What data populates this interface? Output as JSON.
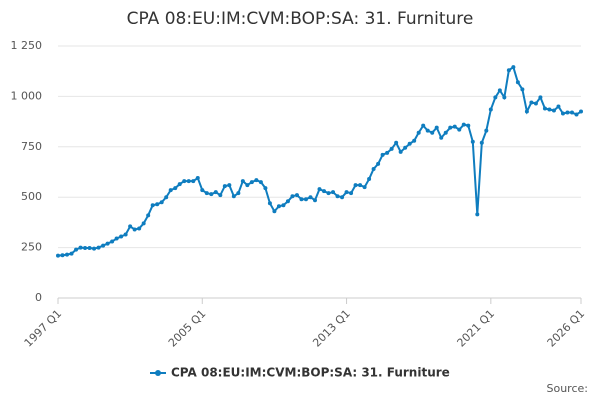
{
  "chart_data": {
    "type": "line",
    "title": "CPA 08:EU:IM:CVM:BOP:SA: 31. Furniture",
    "source": "Source:",
    "categories": [
      "1997 Q1",
      null,
      null,
      null,
      null,
      null,
      null,
      null,
      null,
      null,
      null,
      null,
      null,
      null,
      null,
      null,
      null,
      null,
      null,
      null,
      null,
      null,
      null,
      null,
      null,
      null,
      null,
      null,
      null,
      null,
      null,
      null,
      "2005 Q1",
      null,
      null,
      null,
      null,
      null,
      null,
      null,
      null,
      null,
      null,
      null,
      null,
      null,
      null,
      null,
      null,
      null,
      null,
      null,
      null,
      null,
      null,
      null,
      null,
      null,
      null,
      null,
      null,
      null,
      null,
      null,
      "2013 Q1",
      null,
      null,
      null,
      null,
      null,
      null,
      null,
      null,
      null,
      null,
      null,
      null,
      null,
      null,
      null,
      null,
      null,
      null,
      null,
      null,
      null,
      null,
      null,
      null,
      null,
      null,
      null,
      null,
      null,
      null,
      null,
      "2021 Q1",
      null,
      null,
      null,
      null,
      null,
      null,
      null,
      null,
      null,
      null,
      null,
      null,
      null,
      null,
      null,
      null,
      null,
      null,
      null,
      "2026 Q1"
    ],
    "series": [
      {
        "name": "CPA 08:EU:IM:CVM:BOP:SA: 31. Furniture",
        "color": "#0f7dbf",
        "values": [
          210,
          212,
          215,
          220,
          240,
          250,
          248,
          248,
          245,
          250,
          260,
          270,
          280,
          295,
          305,
          315,
          355,
          340,
          345,
          370,
          410,
          460,
          465,
          475,
          500,
          535,
          545,
          565,
          580,
          580,
          580,
          595,
          535,
          520,
          515,
          525,
          510,
          555,
          560,
          505,
          520,
          580,
          560,
          575,
          585,
          575,
          545,
          470,
          430,
          455,
          460,
          480,
          505,
          510,
          490,
          490,
          500,
          485,
          540,
          530,
          520,
          525,
          505,
          500,
          525,
          520,
          560,
          560,
          550,
          590,
          640,
          665,
          710,
          720,
          740,
          770,
          725,
          745,
          765,
          780,
          820,
          855,
          830,
          820,
          845,
          795,
          820,
          845,
          850,
          835,
          860,
          855,
          775,
          415,
          770,
          830,
          935,
          995,
          1030,
          995,
          1130,
          1145,
          1070,
          1035,
          925,
          970,
          965,
          995,
          940,
          935,
          930,
          950,
          915,
          920,
          920,
          910,
          925
        ]
      }
    ],
    "ylim": [
      0,
      1250
    ],
    "yticks": [
      0,
      250,
      500,
      750,
      {
        "value": 1000,
        "label": "1 000"
      },
      {
        "value": 1250,
        "label": "1 250"
      }
    ],
    "grid": true,
    "legend": "bottom"
  }
}
